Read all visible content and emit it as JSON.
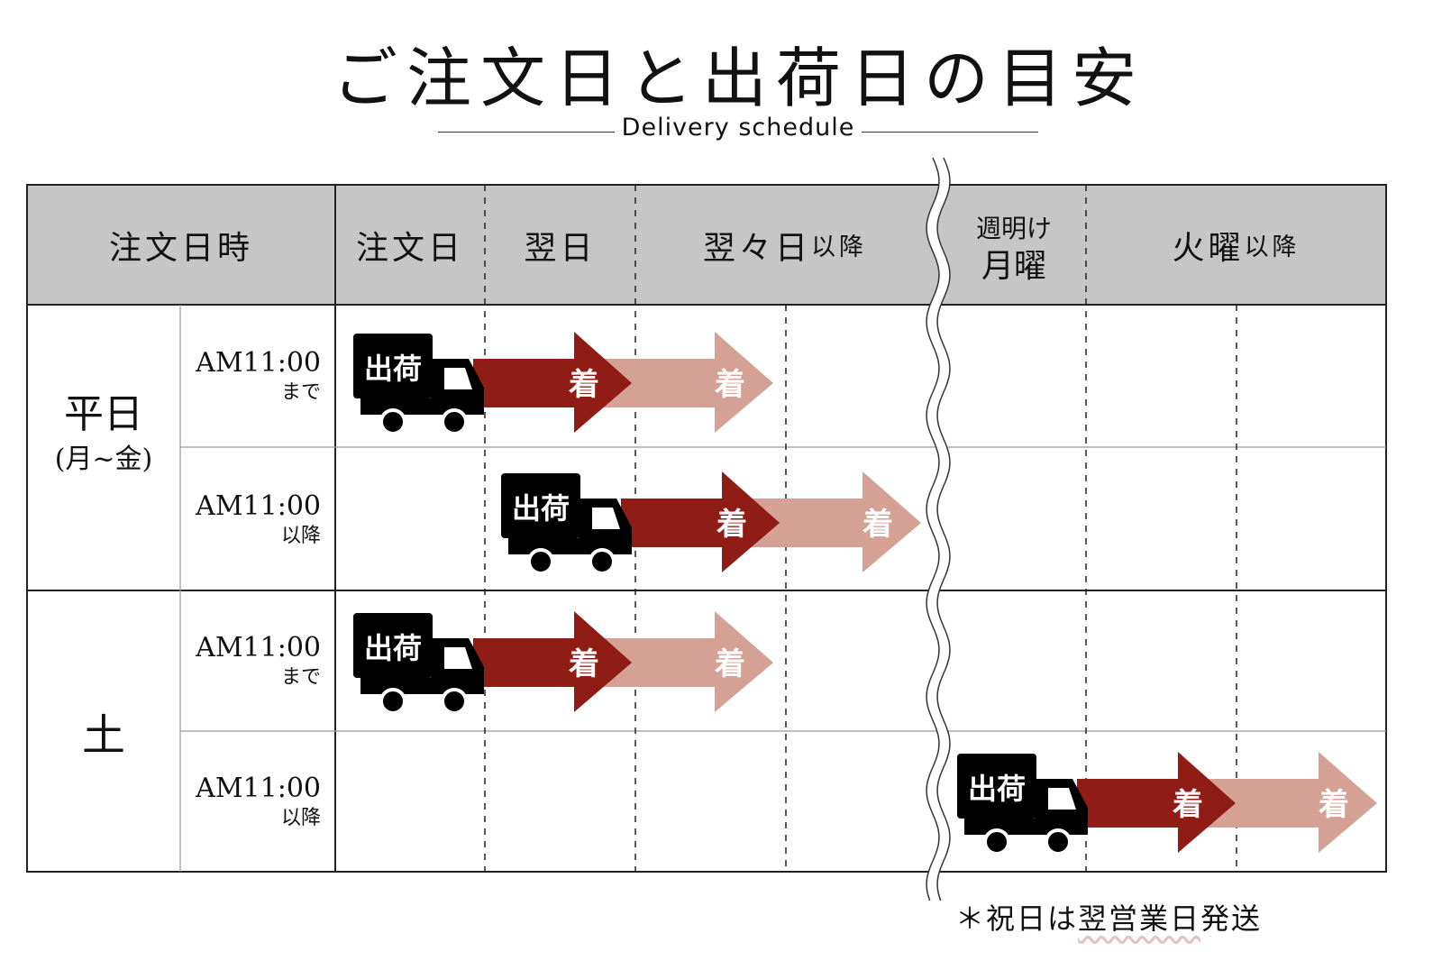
{
  "title": "ご注文日と出荷日の目安",
  "subtitle": "Delivery schedule",
  "header": {
    "order_datetime": "注文日時",
    "order_day": "注文日",
    "next_day": "翌日",
    "day_after": "翌々日",
    "day_after_suffix": "以降",
    "monday_line1": "週明け",
    "monday_line2": "月曜",
    "tuesday": "火曜",
    "tuesday_suffix": "以降"
  },
  "groups": [
    {
      "label": "平日",
      "sub": "(月~金)"
    },
    {
      "label": "土",
      "sub": ""
    }
  ],
  "rows": [
    {
      "time": "AM11:00",
      "cond": "まで",
      "ship_label": "出荷",
      "arrive_label": "着"
    },
    {
      "time": "AM11:00",
      "cond": "以降",
      "ship_label": "出荷",
      "arrive_label": "着"
    },
    {
      "time": "AM11:00",
      "cond": "まで",
      "ship_label": "出荷",
      "arrive_label": "着"
    },
    {
      "time": "AM11:00",
      "cond": "以降",
      "ship_label": "出荷",
      "arrive_label": "着"
    }
  ],
  "note": {
    "prefix": "＊祝日は",
    "emphasis": "翌営業日",
    "suffix": "発送"
  },
  "colors": {
    "header_bg": "#c6c6c6",
    "arrow_dark": "#8f1c15",
    "arrow_light": "#d4a194",
    "truck": "#000000",
    "note_underline": "#e2c6bd"
  }
}
